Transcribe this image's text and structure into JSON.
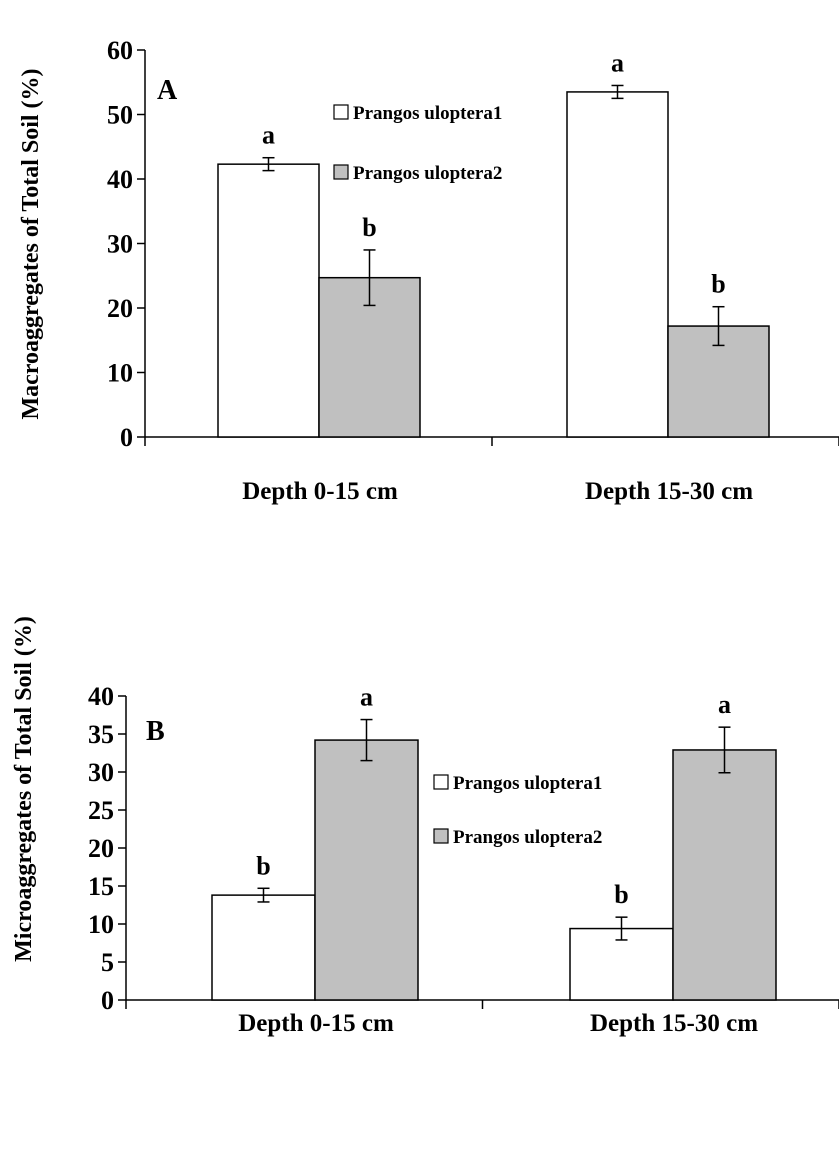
{
  "chart_data": [
    {
      "type": "bar",
      "panel_label": "A",
      "ylabel": "Macroaggregates of Total Soil (%)",
      "xlabel": "",
      "categories": [
        "Depth 0-15 cm",
        "Depth 15-30 cm"
      ],
      "ylim": [
        0,
        60
      ],
      "yticks": [
        0,
        10,
        20,
        30,
        40,
        50,
        60
      ],
      "grid": false,
      "legend_position": "top-center",
      "series": [
        {
          "name": "Prangos uloptera1",
          "color": "#ffffff",
          "values": [
            42.3,
            53.5
          ],
          "errors": [
            1.0,
            1.0
          ],
          "significance": [
            "a",
            "a"
          ]
        },
        {
          "name": "Prangos uloptera2",
          "color": "#c0c0c0",
          "values": [
            24.7,
            17.2
          ],
          "errors": [
            4.3,
            3.0
          ],
          "significance": [
            "b",
            "b"
          ]
        }
      ]
    },
    {
      "type": "bar",
      "panel_label": "B",
      "ylabel": "Microaggregates of Total Soil (%)",
      "xlabel": "",
      "categories": [
        "Depth 0-15 cm",
        "Depth 15-30 cm"
      ],
      "ylim": [
        0,
        40
      ],
      "yticks": [
        0,
        5,
        10,
        15,
        20,
        25,
        30,
        35,
        40
      ],
      "grid": false,
      "legend_position": "center-right",
      "series": [
        {
          "name": "Prangos uloptera1",
          "color": "#ffffff",
          "values": [
            13.8,
            9.4
          ],
          "errors": [
            0.9,
            1.5
          ],
          "significance": [
            "b",
            "b"
          ]
        },
        {
          "name": "Prangos uloptera2",
          "color": "#c0c0c0",
          "values": [
            34.2,
            32.9
          ],
          "errors": [
            2.7,
            3.0
          ],
          "significance": [
            "a",
            "a"
          ]
        }
      ]
    }
  ]
}
